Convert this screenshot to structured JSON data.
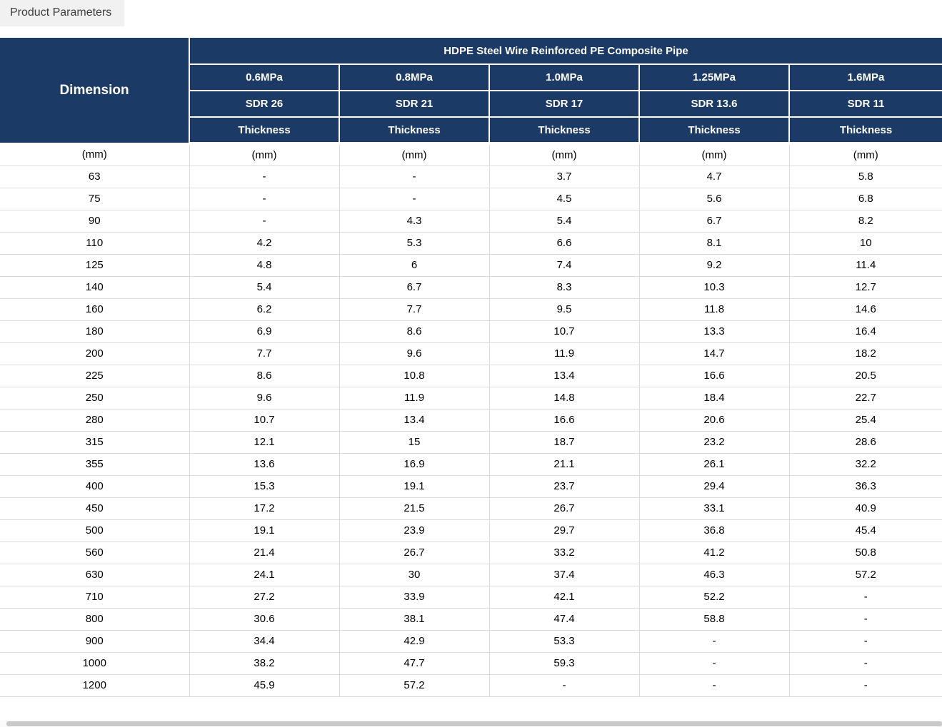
{
  "tab": {
    "label": "Product Parameters"
  },
  "table": {
    "dimension_label": "Dimension",
    "title": "HDPE Steel Wire Reinforced PE Composite Pipe",
    "pressures": [
      "0.6MPa",
      "0.8MPa",
      "1.0MPa",
      "1.25MPa",
      "1.6MPa"
    ],
    "sdrs": [
      "SDR 26",
      "SDR 21",
      "SDR 17",
      "SDR 13.6",
      "SDR 11"
    ],
    "thickness_label": "Thickness",
    "unit": "(mm)",
    "rows": [
      {
        "dim": "63",
        "values": [
          "-",
          "-",
          "3.7",
          "4.7",
          "5.8"
        ]
      },
      {
        "dim": "75",
        "values": [
          "-",
          "-",
          "4.5",
          "5.6",
          "6.8"
        ]
      },
      {
        "dim": "90",
        "values": [
          "-",
          "4.3",
          "5.4",
          "6.7",
          "8.2"
        ]
      },
      {
        "dim": "110",
        "values": [
          "4.2",
          "5.3",
          "6.6",
          "8.1",
          "10"
        ]
      },
      {
        "dim": "125",
        "values": [
          "4.8",
          "6",
          "7.4",
          "9.2",
          "11.4"
        ]
      },
      {
        "dim": "140",
        "values": [
          "5.4",
          "6.7",
          "8.3",
          "10.3",
          "12.7"
        ]
      },
      {
        "dim": "160",
        "values": [
          "6.2",
          "7.7",
          "9.5",
          "11.8",
          "14.6"
        ]
      },
      {
        "dim": "180",
        "values": [
          "6.9",
          "8.6",
          "10.7",
          "13.3",
          "16.4"
        ]
      },
      {
        "dim": "200",
        "values": [
          "7.7",
          "9.6",
          "11.9",
          "14.7",
          "18.2"
        ]
      },
      {
        "dim": "225",
        "values": [
          "8.6",
          "10.8",
          "13.4",
          "16.6",
          "20.5"
        ]
      },
      {
        "dim": "250",
        "values": [
          "9.6",
          "11.9",
          "14.8",
          "18.4",
          "22.7"
        ]
      },
      {
        "dim": "280",
        "values": [
          "10.7",
          "13.4",
          "16.6",
          "20.6",
          "25.4"
        ]
      },
      {
        "dim": "315",
        "values": [
          "12.1",
          "15",
          "18.7",
          "23.2",
          "28.6"
        ]
      },
      {
        "dim": "355",
        "values": [
          "13.6",
          "16.9",
          "21.1",
          "26.1",
          "32.2"
        ]
      },
      {
        "dim": "400",
        "values": [
          "15.3",
          "19.1",
          "23.7",
          "29.4",
          "36.3"
        ]
      },
      {
        "dim": "450",
        "values": [
          "17.2",
          "21.5",
          "26.7",
          "33.1",
          "40.9"
        ]
      },
      {
        "dim": "500",
        "values": [
          "19.1",
          "23.9",
          "29.7",
          "36.8",
          "45.4"
        ]
      },
      {
        "dim": "560",
        "values": [
          "21.4",
          "26.7",
          "33.2",
          "41.2",
          "50.8"
        ]
      },
      {
        "dim": "630",
        "values": [
          "24.1",
          "30",
          "37.4",
          "46.3",
          "57.2"
        ]
      },
      {
        "dim": "710",
        "values": [
          "27.2",
          "33.9",
          "42.1",
          "52.2",
          "-"
        ]
      },
      {
        "dim": "800",
        "values": [
          "30.6",
          "38.1",
          "47.4",
          "58.8",
          "-"
        ]
      },
      {
        "dim": "900",
        "values": [
          "34.4",
          "42.9",
          "53.3",
          "-",
          "-"
        ]
      },
      {
        "dim": "1000",
        "values": [
          "38.2",
          "47.7",
          "59.3",
          "-",
          "-"
        ]
      },
      {
        "dim": "1200",
        "values": [
          "45.9",
          "57.2",
          "-",
          "-",
          "-"
        ]
      }
    ]
  },
  "colors": {
    "header_bg": "#1b3a66",
    "header_text": "#ffffff",
    "body_border": "#dcdcdc",
    "tab_bg": "#f1f1f1",
    "scrollbar_thumb": "#c9c9c9"
  }
}
